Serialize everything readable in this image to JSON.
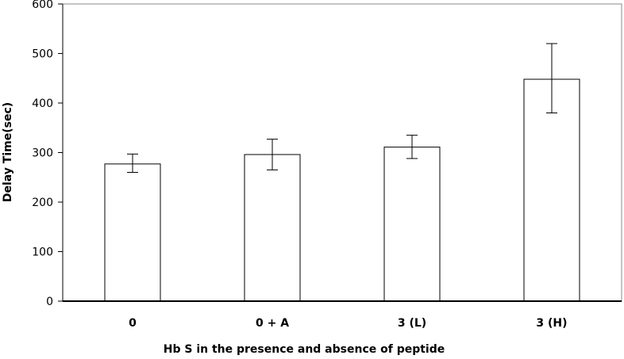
{
  "chart_data": {
    "type": "bar",
    "title": "",
    "xlabel": "Hb S in the presence and absence of peptide",
    "ylabel": "Delay Time(sec)",
    "categories": [
      "0",
      "0 + A",
      "3 (L)",
      "3 (H)"
    ],
    "values": [
      277,
      296,
      311,
      448
    ],
    "error_low": [
      260,
      265,
      288,
      380
    ],
    "error_high": [
      297,
      327,
      335,
      520
    ],
    "ylim": [
      0,
      600
    ],
    "yticks": [
      0,
      100,
      200,
      300,
      400,
      500,
      600
    ],
    "grid": false,
    "legend": "none",
    "colors": {
      "bar_fill": "#ffffff",
      "bar_stroke": "#000000",
      "axis": "#000000"
    }
  }
}
